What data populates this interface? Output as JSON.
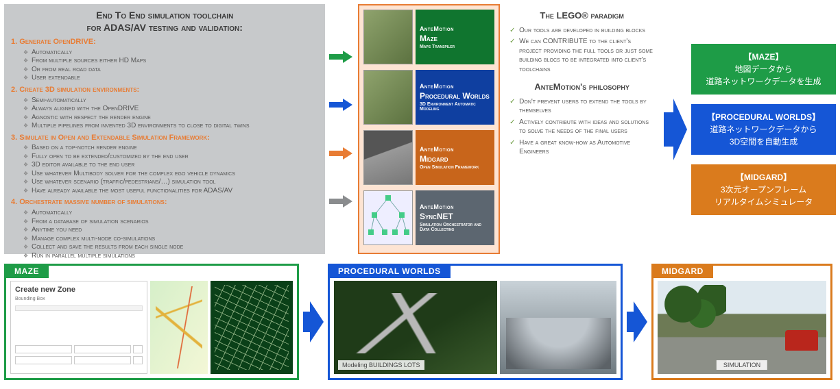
{
  "colors": {
    "orange": "#e87c34",
    "green": "#1e9c47",
    "blue": "#1556d6",
    "grey": "#8a8c8e",
    "darkGreen": "#10752f",
    "darkBlue": "#0f3fa0",
    "darkOrange": "#c8651b",
    "slate": "#5c6670"
  },
  "left": {
    "title1": "End To End simulation toolchain",
    "title2": "for ADAS/AV testing and validation:",
    "sections": [
      {
        "num": "1.",
        "title": "Generate OpenDRIVE:",
        "items": [
          "Automatically",
          "From multiple sources either HD Maps",
          "Or from real road data",
          "User extendable"
        ]
      },
      {
        "num": "2.",
        "title": "Create 3D simulation environments:",
        "items": [
          "Semi-automatically",
          "Always aligned with the OpenDRIVE",
          "Agnostic with respect the render engine",
          "Multiple pipelines from invented 3D environments to close to digital twins"
        ]
      },
      {
        "num": "3.",
        "title": "Simulate in Open and Extendable Simulation Framework:",
        "items": [
          "Based on a top-notch render engine",
          "Fully open to be extended/customized by the end user",
          "3D editor available to the end user",
          "Use whatever Multibody solver for the complex ego vehicle dynamics",
          "Use whatever scenario (traffic/pedestrians/…) simulation tool",
          "Have already available the most useful functionalities for ADAS/AV"
        ]
      },
      {
        "num": "4.",
        "title": "Orchestrate massive number of simulations:",
        "items": [
          "Automatically",
          "From a database of simulation scenarios",
          "Anytime you need",
          "Manage complex multi-node co-simulations",
          "Collect and save the results from each single node",
          "Run in parallel multiple simulations"
        ]
      }
    ]
  },
  "arrows": [
    "green",
    "blue",
    "orange",
    "grey"
  ],
  "products": [
    {
      "brand": "AnteMotion",
      "name": "Maze",
      "sub": "Maps Transpiler",
      "bg": "#10752f",
      "thumb": "aerial"
    },
    {
      "brand": "AnteMotion",
      "name": "Procedural Worlds",
      "sub": "3D Environment Automatic Modeling",
      "bg": "#0f3fa0",
      "thumb": "aerial"
    },
    {
      "brand": "AnteMotion",
      "name": "Midgard",
      "sub": "Open Simulation Framework",
      "bg": "#c8651b",
      "thumb": "road"
    },
    {
      "brand": "AnteMotion",
      "name": "SyncNET",
      "sub": "Simulation Orchestrator and Data Collecting",
      "bg": "#5c6670",
      "thumb": "net"
    }
  ],
  "lego": {
    "h1": "The LEGO® paradigm",
    "p1": [
      "Our tools are developed in building blocks",
      "We can CONTRIBUTE to the client's project providing the full tools or just some building blocs to be integrated into client's toolchains"
    ],
    "h2": "AnteMotion's philosophy",
    "p2": [
      "Don't prevent users to extend the tools by themselves",
      "Actively contribute with ideas and solutions to solve the needs of the final users",
      "Have a great know-how as Automotive Engineers"
    ]
  },
  "jp": [
    {
      "bg": "#1e9c47",
      "title": "【MAZE】",
      "l1": "地図データから",
      "l2": "道路ネットワークデータを生成"
    },
    {
      "bg": "#1556d6",
      "title": "【PROCEDURAL WORLDS】",
      "l1": "道路ネットワークデータから",
      "l2": "3D空間を自動生成"
    },
    {
      "bg": "#da7b1d",
      "title": "【MIDGARD】",
      "l1": "3次元オープンフレーム",
      "l2": "リアルタイムシミュレータ"
    }
  ],
  "bottom": {
    "maze": {
      "tab": "MAZE",
      "formTitle": "Create new Zone",
      "formSub": "Bounding Box"
    },
    "pw": {
      "tab": "PROCEDURAL WORLDS",
      "label": "Modeling BUILDINGS LOTS"
    },
    "mg": {
      "tab": "MIDGARD",
      "label": "SIMULATION"
    }
  }
}
